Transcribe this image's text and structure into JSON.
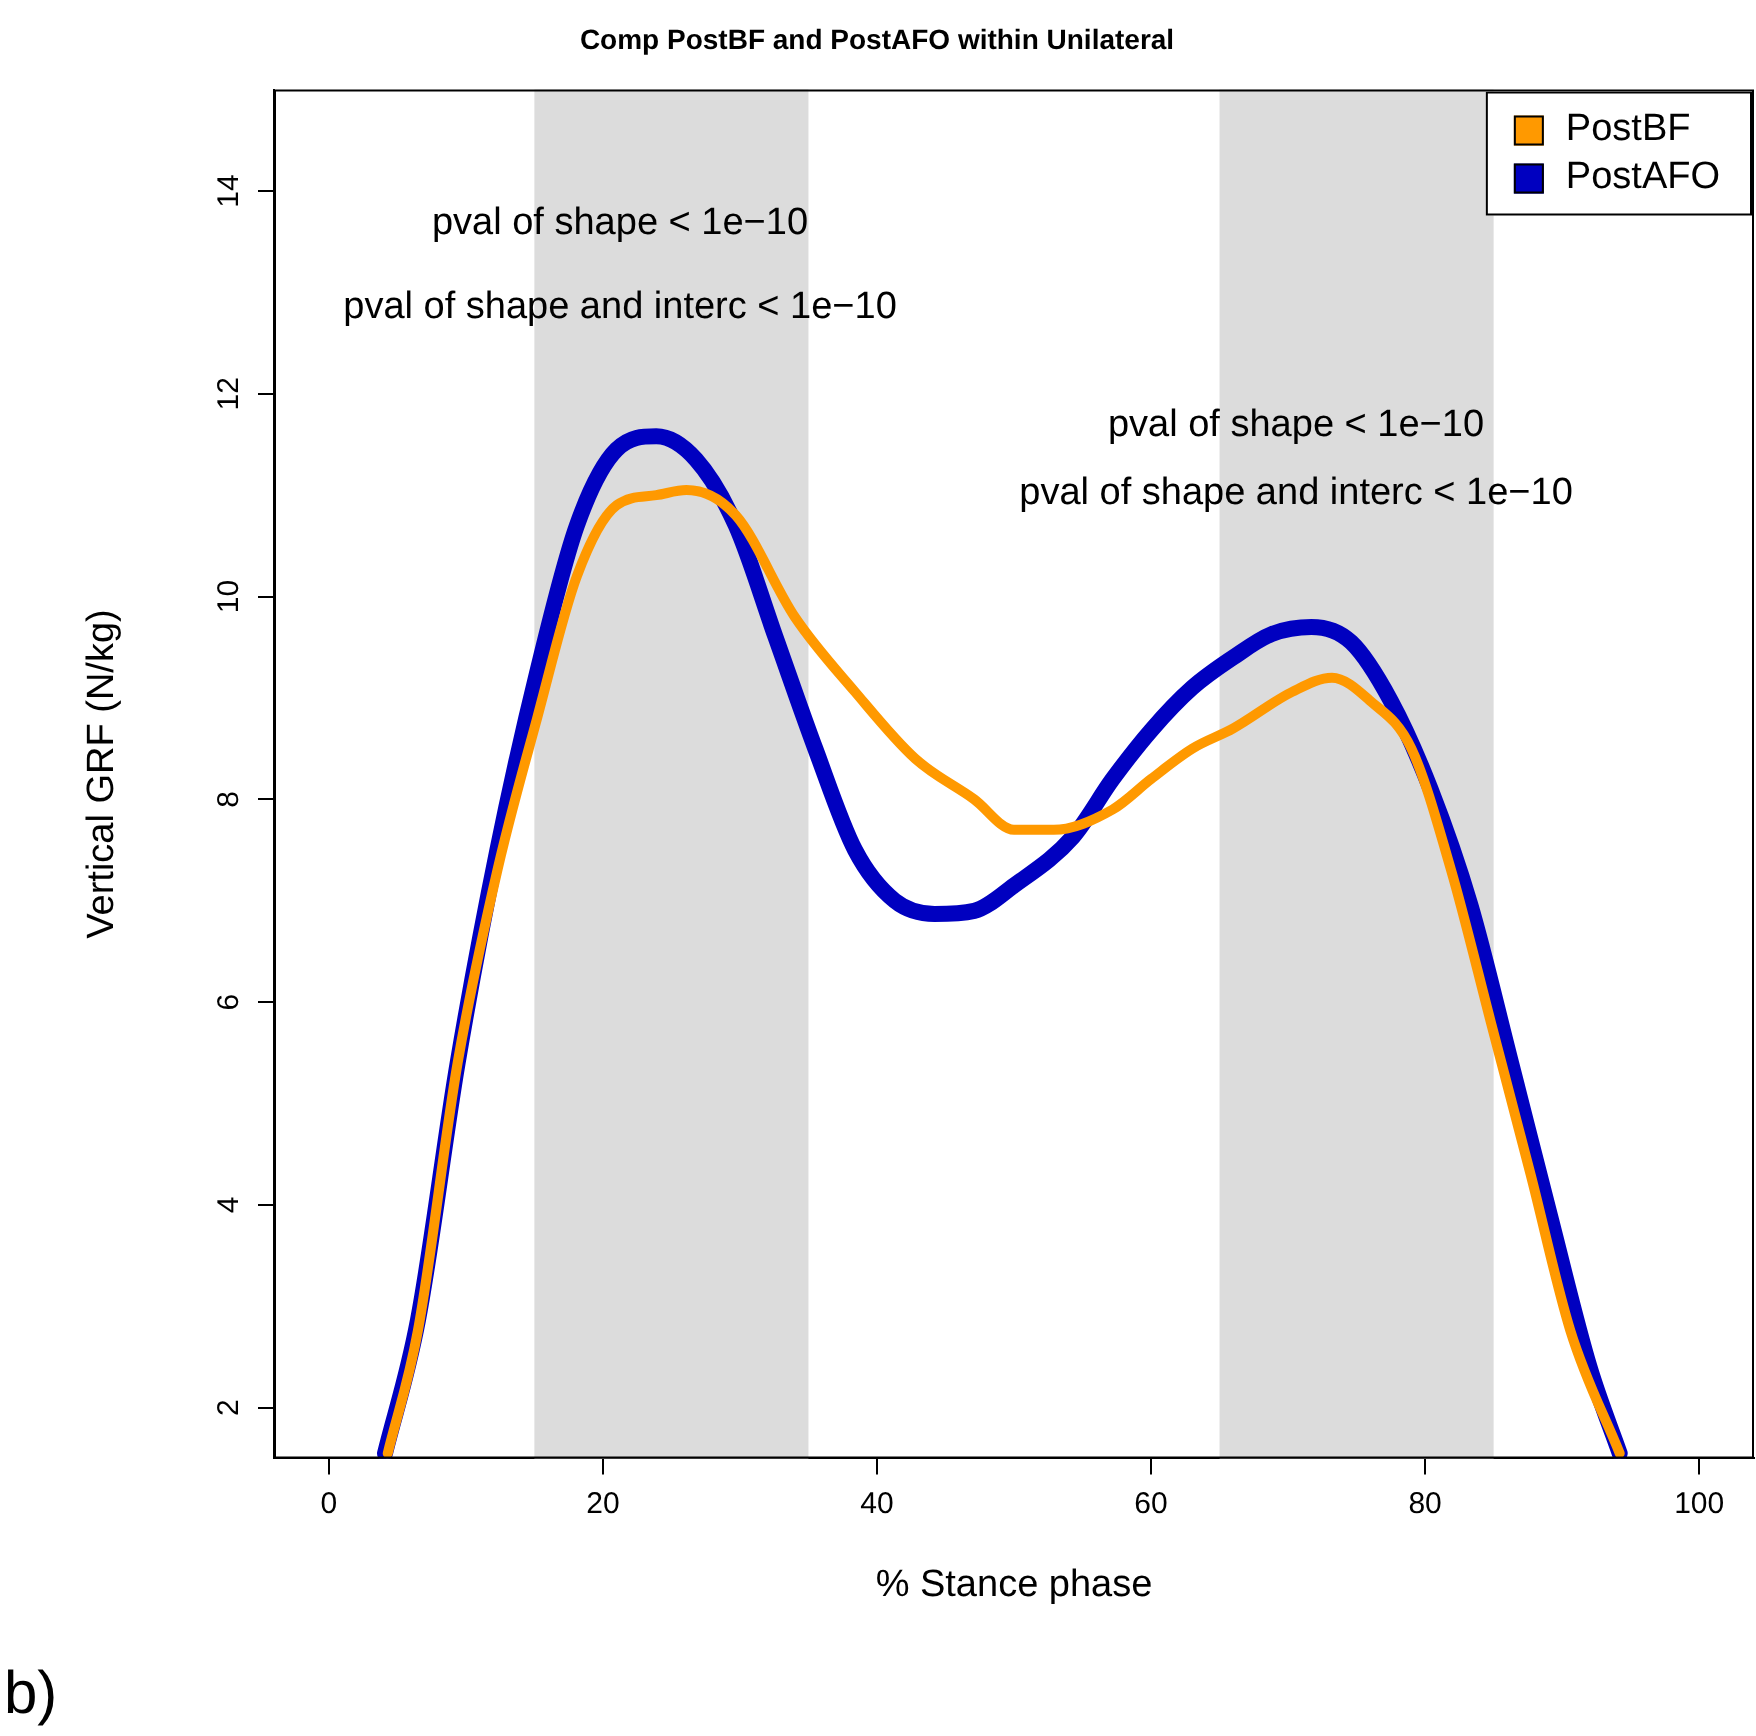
{
  "chart_data": {
    "type": "line",
    "title": "Comp PostBF and PostAFO within Unilateral",
    "xlabel": "% Stance phase",
    "ylabel": "Vertical GRF (N/kg)",
    "xlim": [
      -4,
      104
    ],
    "xticks": [
      0,
      20,
      40,
      60,
      80,
      100
    ],
    "ylim": [
      1.5,
      15
    ],
    "yticks": [
      2,
      4,
      6,
      8,
      10,
      12,
      14
    ],
    "grid": false,
    "legend": "top right",
    "marker": "none",
    "line_style": "solid",
    "bands": [
      {
        "axis": "x",
        "from": 15,
        "to": 35,
        "color": "#dcdcdc"
      },
      {
        "axis": "x",
        "from": 65,
        "to": 85,
        "color": "#dcdcdc"
      }
    ],
    "annotations": [
      "pval of shape < 1e−10",
      "pval of shape and interc < 1e−10",
      "pval of shape < 1e−10",
      "pval of shape and interc < 1e−10",
      "b)"
    ],
    "series": [
      {
        "name": "PostBF",
        "color": "#ff9900",
        "x": [
          4.3,
          6.5,
          9.4,
          12.3,
          15.2,
          18.1,
          21,
          23.9,
          26.1,
          29.7,
          34,
          38.4,
          42.8,
          47.1,
          50,
          52.9,
          57.2,
          60,
          63,
          66,
          70.3,
          73.2,
          76,
          79,
          81.9,
          84.8,
          87.7,
          90.6,
          94.2
        ],
        "values": [
          1.55,
          2.76,
          5.4,
          7.3,
          8.8,
          10.2,
          10.9,
          11.0,
          11.05,
          10.8,
          9.8,
          9.06,
          8.4,
          8.0,
          7.7,
          7.7,
          7.9,
          8.2,
          8.5,
          8.7,
          9.06,
          9.2,
          8.97,
          8.5,
          7.3,
          5.8,
          4.3,
          2.76,
          1.55
        ]
      },
      {
        "name": "PostAFO",
        "color": "#0000c0",
        "x": [
          4.1,
          6.5,
          9.4,
          12.3,
          15.2,
          18.1,
          21,
          23.9,
          26.8,
          29.7,
          32.6,
          35.5,
          38.4,
          41.3,
          44.2,
          47.1,
          50,
          54.3,
          57.2,
          60,
          63,
          66,
          68.8,
          71.7,
          74.6,
          77.5,
          80.4,
          83.3,
          86.2,
          89.1,
          92,
          94.2
        ],
        "values": [
          1.55,
          2.86,
          5.4,
          7.5,
          9.25,
          10.7,
          11.45,
          11.58,
          11.35,
          10.7,
          9.6,
          8.5,
          7.5,
          7.0,
          6.87,
          6.9,
          7.15,
          7.63,
          8.2,
          8.68,
          9.1,
          9.4,
          9.63,
          9.7,
          9.55,
          8.97,
          8.1,
          6.96,
          5.44,
          3.9,
          2.4,
          1.55
        ]
      }
    ]
  }
}
